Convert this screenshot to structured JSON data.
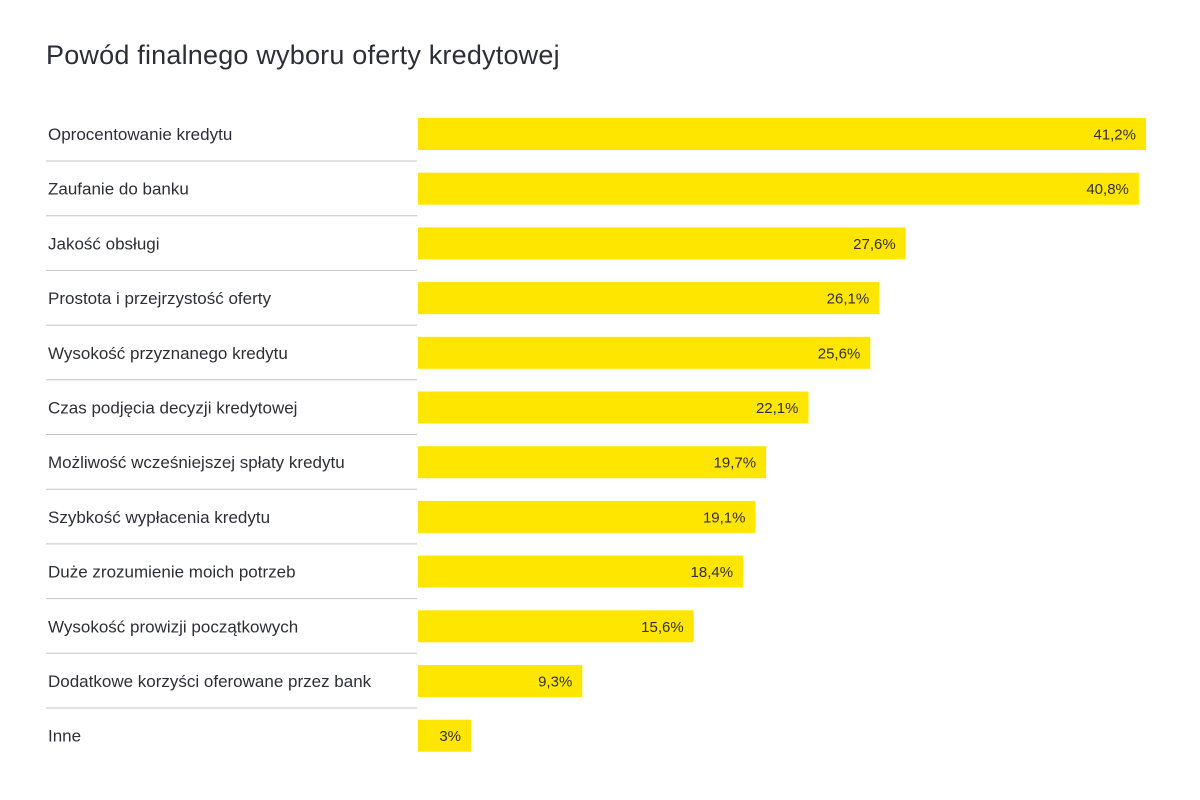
{
  "chart_data": {
    "type": "bar",
    "orientation": "horizontal",
    "title": "Powód finalnego wyboru oferty kredytowej",
    "categories": [
      "Oprocentowanie kredytu",
      "Zaufanie do banku",
      "Jakość obsługi",
      "Prostota i przejrzystość oferty",
      "Wysokość przyznanego kredytu",
      "Czas podjęcia decyzji kredytowej",
      "Możliwość wcześniejszej spłaty kredytu",
      "Szybkość wypłacenia kredytu",
      "Duże zrozumienie moich potrzeb",
      "Wysokość prowizji początkowych",
      "Dodatkowe korzyści oferowane przez bank",
      "Inne"
    ],
    "values": [
      41.2,
      40.8,
      27.6,
      26.1,
      25.6,
      22.1,
      19.7,
      19.1,
      18.4,
      15.6,
      9.3,
      3
    ],
    "value_labels": [
      "41,2%",
      "40,8%",
      "27,6%",
      "26,1%",
      "25,6%",
      "22,1%",
      "19,7%",
      "19,1%",
      "18,4%",
      "15,6%",
      "9,3%",
      "3%"
    ],
    "xlim": [
      0,
      41.2
    ],
    "grid": false,
    "legend": "none",
    "colors": {
      "bar": "#ffe600",
      "text": "#2e2e38",
      "divider": "#c4c4cd"
    }
  }
}
